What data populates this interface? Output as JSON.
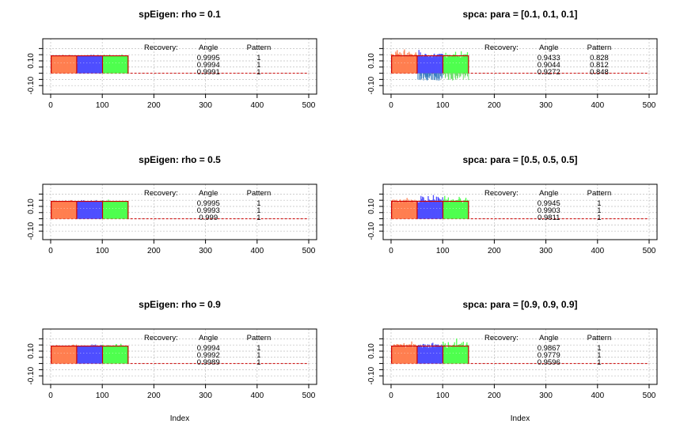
{
  "chart_data": [
    {
      "type": "line",
      "title": "spEigen: rho = 0.1",
      "xlabel": "",
      "xlim": [
        0,
        500
      ],
      "ylim": [
        -0.15,
        0.26
      ],
      "x_ticks": [
        "0",
        "100",
        "200",
        "300",
        "400",
        "500"
      ],
      "y_ticks": [
        "-0.10",
        "0.10"
      ],
      "grid": true,
      "recovery": {
        "label": "Recovery:",
        "columns": [
          "Angle",
          "Pattern"
        ],
        "angle": [
          "0.9995",
          "0.9994",
          "0.9991"
        ],
        "pattern": [
          "1",
          "1",
          "1"
        ]
      },
      "series": [
        {
          "index_range": [
            1,
            50
          ],
          "value": 0.141,
          "color": "#FF7F50"
        },
        {
          "index_range": [
            51,
            100
          ],
          "value": 0.141,
          "color": "#4F4FFF"
        },
        {
          "index_range": [
            101,
            150
          ],
          "value": 0.141,
          "color": "#4FFF4F"
        }
      ],
      "noise_level": 0.008,
      "neg_noise": false
    },
    {
      "type": "line",
      "title": "spca: para = [0.1, 0.1, 0.1]",
      "xlabel": "",
      "xlim": [
        0,
        500
      ],
      "ylim": [
        -0.15,
        0.26
      ],
      "x_ticks": [
        "0",
        "100",
        "200",
        "300",
        "400",
        "500"
      ],
      "y_ticks": [
        "-0.10",
        "0.10"
      ],
      "grid": true,
      "recovery": {
        "label": "Recovery:",
        "columns": [
          "Angle",
          "Pattern"
        ],
        "angle": [
          "0.9433",
          "0.9044",
          "0.9272"
        ],
        "pattern": [
          "0.828",
          "0.812",
          "0.848"
        ]
      },
      "series": [
        {
          "index_range": [
            1,
            50
          ],
          "value": 0.141,
          "color": "#FF7F50"
        },
        {
          "index_range": [
            51,
            100
          ],
          "value": 0.141,
          "color": "#4F4FFF"
        },
        {
          "index_range": [
            101,
            150
          ],
          "value": 0.141,
          "color": "#4FFF4F"
        }
      ],
      "noise_level": 0.035,
      "neg_noise": true
    },
    {
      "type": "line",
      "title": "spEigen: rho = 0.5",
      "xlabel": "",
      "xlim": [
        0,
        500
      ],
      "ylim": [
        -0.15,
        0.26
      ],
      "x_ticks": [
        "0",
        "100",
        "200",
        "300",
        "400",
        "500"
      ],
      "y_ticks": [
        "-0.10",
        "0.10"
      ],
      "grid": true,
      "recovery": {
        "label": "Recovery:",
        "columns": [
          "Angle",
          "Pattern"
        ],
        "angle": [
          "0.9995",
          "0.9993",
          "0.999"
        ],
        "pattern": [
          "1",
          "1",
          "1"
        ]
      },
      "series": [
        {
          "index_range": [
            1,
            50
          ],
          "value": 0.141,
          "color": "#FF7F50"
        },
        {
          "index_range": [
            51,
            100
          ],
          "value": 0.141,
          "color": "#4F4FFF"
        },
        {
          "index_range": [
            101,
            150
          ],
          "value": 0.141,
          "color": "#4FFF4F"
        }
      ],
      "noise_level": 0.008,
      "neg_noise": false
    },
    {
      "type": "line",
      "title": "spca: para = [0.5, 0.5, 0.5]",
      "xlabel": "",
      "xlim": [
        0,
        500
      ],
      "ylim": [
        -0.15,
        0.26
      ],
      "x_ticks": [
        "0",
        "100",
        "200",
        "300",
        "400",
        "500"
      ],
      "y_ticks": [
        "-0.10",
        "0.10"
      ],
      "grid": true,
      "recovery": {
        "label": "Recovery:",
        "columns": [
          "Angle",
          "Pattern"
        ],
        "angle": [
          "0.9945",
          "0.9903",
          "0.9811"
        ],
        "pattern": [
          "1",
          "1",
          "1"
        ]
      },
      "series": [
        {
          "index_range": [
            1,
            50
          ],
          "value": 0.141,
          "color": "#FF7F50"
        },
        {
          "index_range": [
            51,
            100
          ],
          "value": 0.141,
          "color": "#4F4FFF"
        },
        {
          "index_range": [
            101,
            150
          ],
          "value": 0.141,
          "color": "#4FFF4F"
        }
      ],
      "noise_level": 0.03,
      "neg_noise": false
    },
    {
      "type": "line",
      "title": "spEigen: rho = 0.9",
      "xlabel": "Index",
      "xlim": [
        0,
        500
      ],
      "ylim": [
        -0.15,
        0.26
      ],
      "x_ticks": [
        "0",
        "100",
        "200",
        "300",
        "400",
        "500"
      ],
      "y_ticks": [
        "-0.10",
        "0.10"
      ],
      "grid": true,
      "recovery": {
        "label": "Recovery:",
        "columns": [
          "Angle",
          "Pattern"
        ],
        "angle": [
          "0.9994",
          "0.9992",
          "0.9989"
        ],
        "pattern": [
          "1",
          "1",
          "1"
        ]
      },
      "series": [
        {
          "index_range": [
            1,
            50
          ],
          "value": 0.141,
          "color": "#FF7F50"
        },
        {
          "index_range": [
            51,
            100
          ],
          "value": 0.141,
          "color": "#4F4FFF"
        },
        {
          "index_range": [
            101,
            150
          ],
          "value": 0.141,
          "color": "#4FFF4F"
        }
      ],
      "noise_level": 0.01,
      "neg_noise": false
    },
    {
      "type": "line",
      "title": "spca: para = [0.9, 0.9, 0.9]",
      "xlabel": "Index",
      "xlim": [
        0,
        500
      ],
      "ylim": [
        -0.15,
        0.26
      ],
      "x_ticks": [
        "0",
        "100",
        "200",
        "300",
        "400",
        "500"
      ],
      "y_ticks": [
        "-0.10",
        "0.10"
      ],
      "grid": true,
      "recovery": {
        "label": "Recovery:",
        "columns": [
          "Angle",
          "Pattern"
        ],
        "angle": [
          "0.9867",
          "0.9779",
          "0.9596"
        ],
        "pattern": [
          "1",
          "1",
          "1"
        ]
      },
      "series": [
        {
          "index_range": [
            1,
            50
          ],
          "value": 0.141,
          "color": "#FF7F50"
        },
        {
          "index_range": [
            51,
            100
          ],
          "value": 0.141,
          "color": "#4F4FFF"
        },
        {
          "index_range": [
            101,
            150
          ],
          "value": 0.141,
          "color": "#4FFF4F"
        }
      ],
      "noise_level": 0.035,
      "neg_noise": false
    }
  ],
  "colors": {
    "reference": "#CC0000",
    "box": "#000000",
    "grid": "#BEBEBE",
    "background": "#FFFFFF"
  }
}
